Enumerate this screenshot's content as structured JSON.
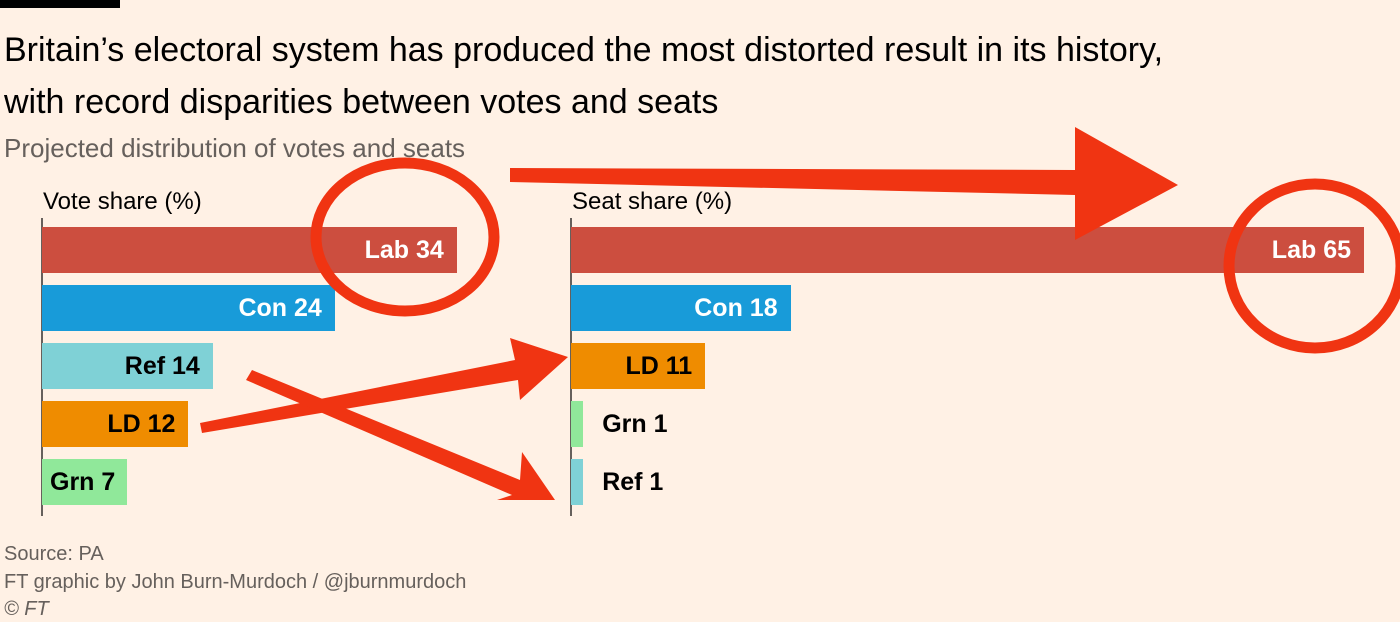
{
  "title_line1": "Britain’s electoral system has produced the most distorted result in its history,",
  "title_line2": "with record disparities between votes and seats",
  "subtitle": "Projected distribution of votes and seats",
  "chart_data": [
    {
      "type": "bar",
      "orientation": "horizontal",
      "title": "Vote share (%)",
      "categories": [
        "Lab",
        "Con",
        "Ref",
        "LD",
        "Grn"
      ],
      "values": [
        34,
        24,
        14,
        12,
        7
      ],
      "colors": [
        "#cc4e3f",
        "#189bd9",
        "#7fd1d6",
        "#ef8c00",
        "#90e89a"
      ],
      "label_colors": [
        "#ffffff",
        "#ffffff",
        "#000000",
        "#000000",
        "#000000"
      ],
      "data_labels": [
        "Lab 34",
        "Con 24",
        "Ref 14",
        "LD 12",
        "Grn 7"
      ]
    },
    {
      "type": "bar",
      "orientation": "horizontal",
      "title": "Seat share (%)",
      "categories": [
        "Lab",
        "Con",
        "LD",
        "Grn",
        "Ref"
      ],
      "values": [
        65,
        18,
        11,
        1,
        1
      ],
      "colors": [
        "#cc4e3f",
        "#189bd9",
        "#ef8c00",
        "#90e89a",
        "#7fd1d6"
      ],
      "label_colors": [
        "#ffffff",
        "#ffffff",
        "#000000",
        "#000000",
        "#000000"
      ],
      "data_labels": [
        "Lab 65",
        "Con 18",
        "LD 11",
        "Grn 1",
        "Ref 1"
      ]
    }
  ],
  "footer": {
    "source": "Source: PA",
    "credit": "FT graphic by John Burn-Murdoch / @jburnmurdoch",
    "copyright": "© FT"
  },
  "annotation_color": "#f03412"
}
